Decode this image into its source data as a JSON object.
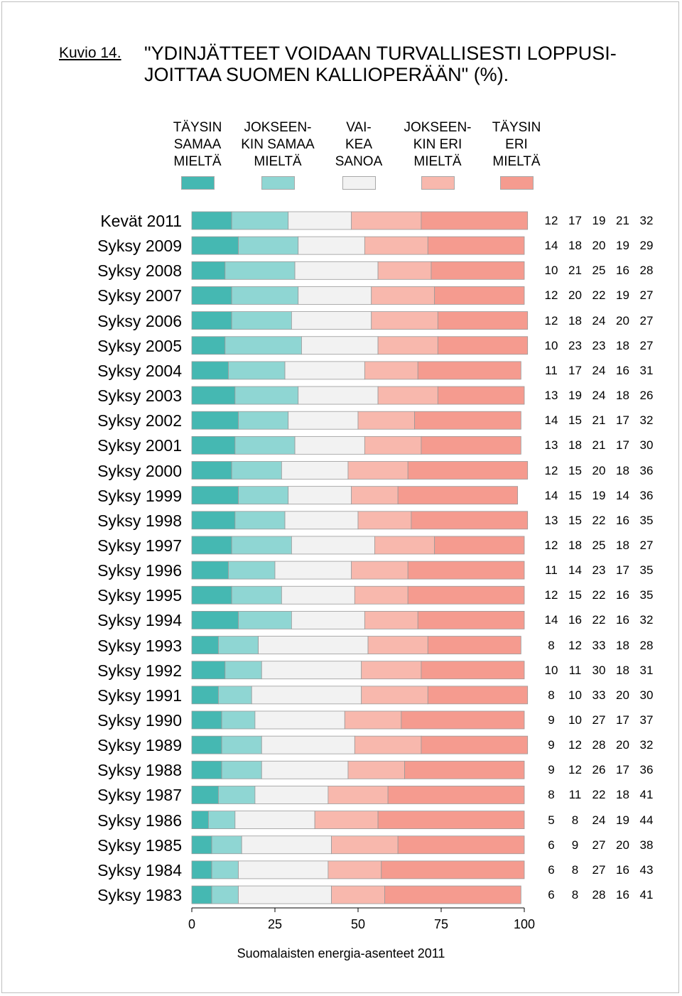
{
  "figure_label": "Kuvio 14.",
  "chart_data": {
    "type": "bar",
    "orientation": "horizontal",
    "stacked": true,
    "title": "\"YDINJÄTTEET VOIDAAN TURVALLISESTI LOPPUSI-\nJOITTAA SUOMEN KALLIOPERÄÄN\" (%).",
    "source": "Suomalaisten energia-asenteet 2011",
    "xlim": [
      0,
      100
    ],
    "xticks": [
      "0",
      "25",
      "50",
      "75",
      "100"
    ],
    "categories": [
      "Kevät 2011",
      "Syksy 2009",
      "Syksy 2008",
      "Syksy 2007",
      "Syksy 2006",
      "Syksy 2005",
      "Syksy 2004",
      "Syksy 2003",
      "Syksy 2002",
      "Syksy 2001",
      "Syksy 2000",
      "Syksy 1999",
      "Syksy 1998",
      "Syksy 1997",
      "Syksy 1996",
      "Syksy 1995",
      "Syksy 1994",
      "Syksy 1993",
      "Syksy 1992",
      "Syksy 1991",
      "Syksy 1990",
      "Syksy 1989",
      "Syksy 1988",
      "Syksy 1987",
      "Syksy 1986",
      "Syksy 1985",
      "Syksy 1984",
      "Syksy 1983"
    ],
    "series": [
      {
        "name": "TÄYSIN\nSAMAA\nMIELTÄ",
        "color": "#45b8b2",
        "values": [
          12,
          14,
          10,
          12,
          12,
          10,
          11,
          13,
          14,
          13,
          12,
          14,
          13,
          12,
          11,
          12,
          14,
          8,
          10,
          8,
          9,
          9,
          9,
          8,
          5,
          6,
          6,
          6
        ]
      },
      {
        "name": "JOKSEEN-\nKIN SAMAA\nMIELTÄ",
        "color": "#8fd6d3",
        "values": [
          17,
          18,
          21,
          20,
          18,
          23,
          17,
          19,
          15,
          18,
          15,
          15,
          15,
          18,
          14,
          15,
          16,
          12,
          11,
          10,
          10,
          12,
          12,
          11,
          8,
          9,
          8,
          8
        ]
      },
      {
        "name": "VAI-\nKEA\nSANOA",
        "color": "#f2f2f2",
        "values": [
          19,
          20,
          25,
          22,
          24,
          23,
          24,
          24,
          21,
          21,
          20,
          19,
          22,
          25,
          23,
          22,
          22,
          33,
          30,
          33,
          27,
          28,
          26,
          22,
          24,
          27,
          27,
          28
        ]
      },
      {
        "name": "JOKSEEN-\nKIN ERI\nMIELTÄ",
        "color": "#f8b8ad",
        "values": [
          21,
          19,
          16,
          19,
          20,
          18,
          16,
          18,
          17,
          17,
          18,
          14,
          16,
          18,
          17,
          16,
          16,
          18,
          18,
          20,
          17,
          20,
          17,
          18,
          19,
          20,
          16,
          16
        ]
      },
      {
        "name": "TÄYSIN\nERI\nMIELTÄ",
        "color": "#f59b8f",
        "values": [
          32,
          29,
          28,
          27,
          27,
          27,
          31,
          26,
          32,
          30,
          36,
          36,
          35,
          27,
          35,
          35,
          32,
          28,
          31,
          30,
          37,
          32,
          36,
          41,
          44,
          38,
          43,
          41
        ]
      }
    ]
  }
}
